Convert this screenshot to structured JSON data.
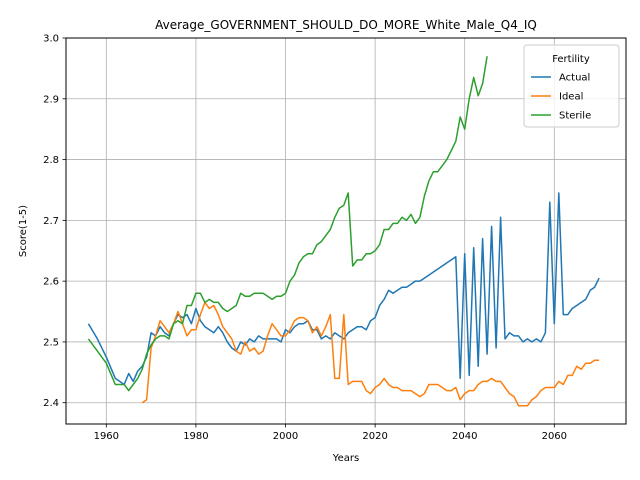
{
  "chart_data": {
    "type": "line",
    "title": "Average_GOVERNMENT_SHOULD_DO_MORE_White_Male_Q4_IQ",
    "xlabel": "Years",
    "ylabel": "Score(1-5)",
    "xlim": [
      1951,
      2076
    ],
    "ylim": [
      2.365,
      3.0
    ],
    "xticks": [
      1960,
      1980,
      2000,
      2020,
      2040,
      2060
    ],
    "yticks": [
      2.4,
      2.5,
      2.6,
      2.7,
      2.8,
      2.9,
      3.0
    ],
    "ytick_labels": [
      "2.4",
      "2.5",
      "2.6",
      "2.7",
      "2.8",
      "2.9",
      "3.0"
    ],
    "grid": true,
    "legend": {
      "title": "Fertility",
      "position": "top-right"
    },
    "series": [
      {
        "name": "Actual",
        "color": "#1f77b4",
        "points": [
          [
            1956,
            2.53
          ],
          [
            1958,
            2.505
          ],
          [
            1960,
            2.475
          ],
          [
            1962,
            2.44
          ],
          [
            1964,
            2.43
          ],
          [
            1965,
            2.448
          ],
          [
            1966,
            2.435
          ],
          [
            1967,
            2.452
          ],
          [
            1968,
            2.46
          ],
          [
            1969,
            2.475
          ],
          [
            1970,
            2.515
          ],
          [
            1971,
            2.51
          ],
          [
            1972,
            2.525
          ],
          [
            1973,
            2.515
          ],
          [
            1974,
            2.51
          ],
          [
            1975,
            2.53
          ],
          [
            1976,
            2.545
          ],
          [
            1977,
            2.54
          ],
          [
            1978,
            2.545
          ],
          [
            1979,
            2.53
          ],
          [
            1980,
            2.555
          ],
          [
            1981,
            2.535
          ],
          [
            1982,
            2.525
          ],
          [
            1983,
            2.52
          ],
          [
            1984,
            2.515
          ],
          [
            1985,
            2.525
          ],
          [
            1986,
            2.515
          ],
          [
            1987,
            2.5
          ],
          [
            1988,
            2.49
          ],
          [
            1989,
            2.485
          ],
          [
            1990,
            2.5
          ],
          [
            1991,
            2.495
          ],
          [
            1992,
            2.505
          ],
          [
            1993,
            2.5
          ],
          [
            1994,
            2.51
          ],
          [
            1995,
            2.505
          ],
          [
            1996,
            2.505
          ],
          [
            1997,
            2.505
          ],
          [
            1998,
            2.505
          ],
          [
            1999,
            2.5
          ],
          [
            2000,
            2.52
          ],
          [
            2001,
            2.515
          ],
          [
            2002,
            2.525
          ],
          [
            2003,
            2.53
          ],
          [
            2004,
            2.53
          ],
          [
            2005,
            2.535
          ],
          [
            2006,
            2.52
          ],
          [
            2007,
            2.52
          ],
          [
            2008,
            2.505
          ],
          [
            2009,
            2.51
          ],
          [
            2010,
            2.505
          ],
          [
            2011,
            2.515
          ],
          [
            2012,
            2.51
          ],
          [
            2013,
            2.505
          ],
          [
            2014,
            2.515
          ],
          [
            2015,
            2.52
          ],
          [
            2016,
            2.525
          ],
          [
            2017,
            2.525
          ],
          [
            2018,
            2.52
          ],
          [
            2019,
            2.535
          ],
          [
            2020,
            2.54
          ],
          [
            2021,
            2.56
          ],
          [
            2022,
            2.57
          ],
          [
            2023,
            2.585
          ],
          [
            2024,
            2.58
          ],
          [
            2025,
            2.585
          ],
          [
            2026,
            2.59
          ],
          [
            2027,
            2.59
          ],
          [
            2028,
            2.595
          ],
          [
            2029,
            2.6
          ],
          [
            2030,
            2.6
          ],
          [
            2031,
            2.605
          ],
          [
            2032,
            2.61
          ],
          [
            2033,
            2.615
          ],
          [
            2034,
            2.62
          ],
          [
            2035,
            2.625
          ],
          [
            2036,
            2.63
          ],
          [
            2037,
            2.635
          ],
          [
            2038,
            2.64
          ],
          [
            2039,
            2.44
          ],
          [
            2040,
            2.645
          ],
          [
            2041,
            2.445
          ],
          [
            2042,
            2.655
          ],
          [
            2043,
            2.46
          ],
          [
            2044,
            2.67
          ],
          [
            2045,
            2.48
          ],
          [
            2046,
            2.69
          ],
          [
            2047,
            2.49
          ],
          [
            2048,
            2.705
          ],
          [
            2049,
            2.505
          ],
          [
            2050,
            2.515
          ],
          [
            2051,
            2.51
          ],
          [
            2052,
            2.51
          ],
          [
            2053,
            2.5
          ],
          [
            2054,
            2.505
          ],
          [
            2055,
            2.5
          ],
          [
            2056,
            2.505
          ],
          [
            2057,
            2.5
          ],
          [
            2058,
            2.515
          ],
          [
            2059,
            2.73
          ],
          [
            2060,
            2.53
          ],
          [
            2061,
            2.745
          ],
          [
            2062,
            2.545
          ],
          [
            2063,
            2.545
          ],
          [
            2064,
            2.555
          ],
          [
            2065,
            2.56
          ],
          [
            2066,
            2.565
          ],
          [
            2067,
            2.57
          ],
          [
            2068,
            2.585
          ],
          [
            2069,
            2.59
          ],
          [
            2070,
            2.605
          ]
        ]
      },
      {
        "name": "Ideal",
        "color": "#ff7f0e",
        "points": [
          [
            1968,
            2.4
          ],
          [
            1969,
            2.405
          ],
          [
            1970,
            2.49
          ],
          [
            1971,
            2.51
          ],
          [
            1972,
            2.535
          ],
          [
            1973,
            2.525
          ],
          [
            1974,
            2.515
          ],
          [
            1975,
            2.53
          ],
          [
            1976,
            2.55
          ],
          [
            1977,
            2.53
          ],
          [
            1978,
            2.51
          ],
          [
            1979,
            2.52
          ],
          [
            1980,
            2.52
          ],
          [
            1981,
            2.545
          ],
          [
            1982,
            2.565
          ],
          [
            1983,
            2.555
          ],
          [
            1984,
            2.56
          ],
          [
            1985,
            2.545
          ],
          [
            1986,
            2.525
          ],
          [
            1987,
            2.515
          ],
          [
            1988,
            2.505
          ],
          [
            1989,
            2.485
          ],
          [
            1990,
            2.48
          ],
          [
            1991,
            2.5
          ],
          [
            1992,
            2.485
          ],
          [
            1993,
            2.49
          ],
          [
            1994,
            2.48
          ],
          [
            1995,
            2.485
          ],
          [
            1996,
            2.51
          ],
          [
            1997,
            2.53
          ],
          [
            1998,
            2.52
          ],
          [
            1999,
            2.51
          ],
          [
            2000,
            2.51
          ],
          [
            2001,
            2.52
          ],
          [
            2002,
            2.535
          ],
          [
            2003,
            2.54
          ],
          [
            2004,
            2.54
          ],
          [
            2005,
            2.535
          ],
          [
            2006,
            2.515
          ],
          [
            2007,
            2.525
          ],
          [
            2008,
            2.51
          ],
          [
            2009,
            2.525
          ],
          [
            2010,
            2.545
          ],
          [
            2011,
            2.44
          ],
          [
            2012,
            2.44
          ],
          [
            2013,
            2.545
          ],
          [
            2014,
            2.43
          ],
          [
            2015,
            2.435
          ],
          [
            2016,
            2.435
          ],
          [
            2017,
            2.435
          ],
          [
            2018,
            2.42
          ],
          [
            2019,
            2.415
          ],
          [
            2020,
            2.425
          ],
          [
            2021,
            2.43
          ],
          [
            2022,
            2.44
          ],
          [
            2023,
            2.43
          ],
          [
            2024,
            2.425
          ],
          [
            2025,
            2.425
          ],
          [
            2026,
            2.42
          ],
          [
            2027,
            2.42
          ],
          [
            2028,
            2.42
          ],
          [
            2029,
            2.415
          ],
          [
            2030,
            2.41
          ],
          [
            2031,
            2.415
          ],
          [
            2032,
            2.43
          ],
          [
            2033,
            2.43
          ],
          [
            2034,
            2.43
          ],
          [
            2035,
            2.425
          ],
          [
            2036,
            2.42
          ],
          [
            2037,
            2.42
          ],
          [
            2038,
            2.425
          ],
          [
            2039,
            2.405
          ],
          [
            2040,
            2.415
          ],
          [
            2041,
            2.42
          ],
          [
            2042,
            2.42
          ],
          [
            2043,
            2.43
          ],
          [
            2044,
            2.435
          ],
          [
            2045,
            2.435
          ],
          [
            2046,
            2.44
          ],
          [
            2047,
            2.435
          ],
          [
            2048,
            2.435
          ],
          [
            2049,
            2.425
          ],
          [
            2050,
            2.415
          ],
          [
            2051,
            2.41
          ],
          [
            2052,
            2.395
          ],
          [
            2053,
            2.395
          ],
          [
            2054,
            2.395
          ],
          [
            2055,
            2.405
          ],
          [
            2056,
            2.41
          ],
          [
            2057,
            2.42
          ],
          [
            2058,
            2.425
          ],
          [
            2059,
            2.425
          ],
          [
            2060,
            2.425
          ],
          [
            2061,
            2.435
          ],
          [
            2062,
            2.43
          ],
          [
            2063,
            2.445
          ],
          [
            2064,
            2.445
          ],
          [
            2065,
            2.46
          ],
          [
            2066,
            2.455
          ],
          [
            2067,
            2.465
          ],
          [
            2068,
            2.465
          ],
          [
            2069,
            2.47
          ],
          [
            2070,
            2.47
          ]
        ]
      },
      {
        "name": "Sterile",
        "color": "#2ca02c",
        "points": [
          [
            1956,
            2.505
          ],
          [
            1958,
            2.485
          ],
          [
            1960,
            2.465
          ],
          [
            1962,
            2.43
          ],
          [
            1964,
            2.43
          ],
          [
            1965,
            2.42
          ],
          [
            1966,
            2.43
          ],
          [
            1967,
            2.44
          ],
          [
            1968,
            2.455
          ],
          [
            1969,
            2.48
          ],
          [
            1970,
            2.495
          ],
          [
            1971,
            2.505
          ],
          [
            1972,
            2.51
          ],
          [
            1973,
            2.51
          ],
          [
            1974,
            2.505
          ],
          [
            1975,
            2.53
          ],
          [
            1976,
            2.535
          ],
          [
            1977,
            2.53
          ],
          [
            1978,
            2.56
          ],
          [
            1979,
            2.56
          ],
          [
            1980,
            2.58
          ],
          [
            1981,
            2.58
          ],
          [
            1982,
            2.565
          ],
          [
            1983,
            2.57
          ],
          [
            1984,
            2.565
          ],
          [
            1985,
            2.565
          ],
          [
            1986,
            2.555
          ],
          [
            1987,
            2.55
          ],
          [
            1988,
            2.555
          ],
          [
            1989,
            2.56
          ],
          [
            1990,
            2.58
          ],
          [
            1991,
            2.575
          ],
          [
            1992,
            2.575
          ],
          [
            1993,
            2.58
          ],
          [
            1994,
            2.58
          ],
          [
            1995,
            2.58
          ],
          [
            1996,
            2.575
          ],
          [
            1997,
            2.57
          ],
          [
            1998,
            2.575
          ],
          [
            1999,
            2.575
          ],
          [
            2000,
            2.58
          ],
          [
            2001,
            2.6
          ],
          [
            2002,
            2.61
          ],
          [
            2003,
            2.63
          ],
          [
            2004,
            2.64
          ],
          [
            2005,
            2.645
          ],
          [
            2006,
            2.645
          ],
          [
            2007,
            2.66
          ],
          [
            2008,
            2.665
          ],
          [
            2009,
            2.675
          ],
          [
            2010,
            2.685
          ],
          [
            2011,
            2.705
          ],
          [
            2012,
            2.72
          ],
          [
            2013,
            2.725
          ],
          [
            2014,
            2.745
          ],
          [
            2015,
            2.625
          ],
          [
            2016,
            2.635
          ],
          [
            2017,
            2.635
          ],
          [
            2018,
            2.645
          ],
          [
            2019,
            2.645
          ],
          [
            2020,
            2.65
          ],
          [
            2021,
            2.66
          ],
          [
            2022,
            2.685
          ],
          [
            2023,
            2.685
          ],
          [
            2024,
            2.695
          ],
          [
            2025,
            2.695
          ],
          [
            2026,
            2.705
          ],
          [
            2027,
            2.7
          ],
          [
            2028,
            2.71
          ],
          [
            2029,
            2.695
          ],
          [
            2030,
            2.705
          ],
          [
            2031,
            2.74
          ],
          [
            2032,
            2.765
          ],
          [
            2033,
            2.78
          ],
          [
            2034,
            2.78
          ],
          [
            2035,
            2.79
          ],
          [
            2036,
            2.8
          ],
          [
            2037,
            2.815
          ],
          [
            2038,
            2.83
          ],
          [
            2039,
            2.87
          ],
          [
            2040,
            2.85
          ],
          [
            2041,
            2.9
          ],
          [
            2042,
            2.935
          ],
          [
            2043,
            2.905
          ],
          [
            2044,
            2.925
          ],
          [
            2045,
            2.97
          ]
        ]
      }
    ]
  }
}
